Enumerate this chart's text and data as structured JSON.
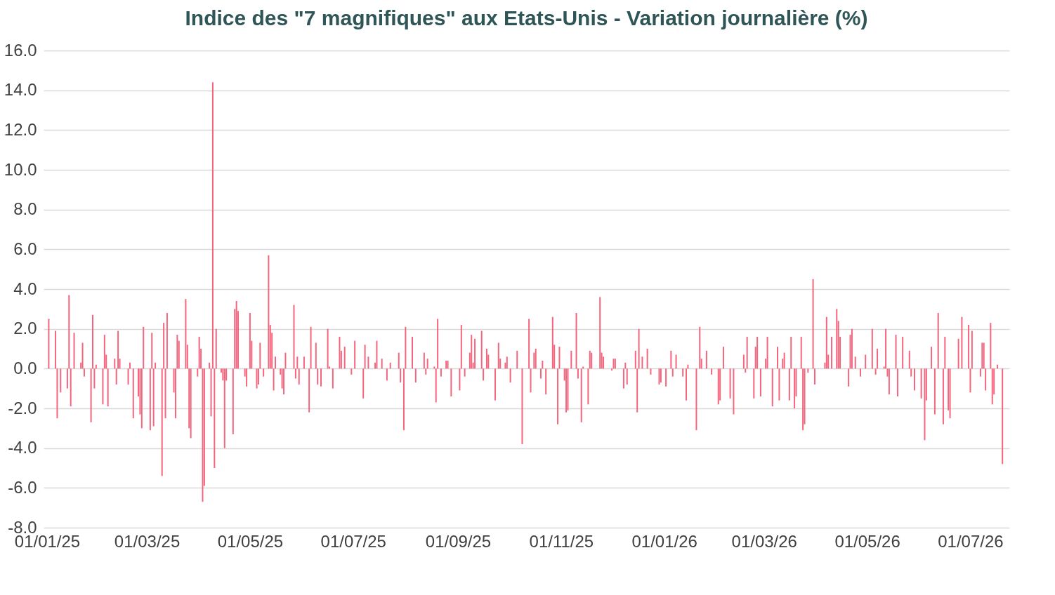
{
  "chart_data": {
    "type": "bar",
    "title": "Indice des \"7 magnifiques\" aux Etats-Unis - Variation journalière (%)",
    "x": [
      "2025-01-02",
      "2025-01-06",
      "2025-01-07",
      "2025-01-09",
      "2025-01-13",
      "2025-01-14",
      "2025-01-15",
      "2025-01-17",
      "2025-01-21",
      "2025-01-22",
      "2025-01-23",
      "2025-01-27",
      "2025-01-28",
      "2025-01-29",
      "2025-01-30",
      "2025-02-03",
      "2025-02-04",
      "2025-02-05",
      "2025-02-06",
      "2025-02-10",
      "2025-02-11",
      "2025-02-12",
      "2025-02-13",
      "2025-02-18",
      "2025-02-19",
      "2025-02-21",
      "2025-02-24",
      "2025-02-25",
      "2025-02-26",
      "2025-02-27",
      "2025-03-03",
      "2025-03-04",
      "2025-03-05",
      "2025-03-06",
      "2025-03-10",
      "2025-03-11",
      "2025-03-12",
      "2025-03-13",
      "2025-03-17",
      "2025-03-18",
      "2025-03-19",
      "2025-03-20",
      "2025-03-24",
      "2025-03-25",
      "2025-03-26",
      "2025-03-27",
      "2025-03-31",
      "2025-04-01",
      "2025-04-02",
      "2025-04-03",
      "2025-04-04",
      "2025-04-07",
      "2025-04-08",
      "2025-04-09",
      "2025-04-10",
      "2025-04-11",
      "2025-04-14",
      "2025-04-15",
      "2025-04-16",
      "2025-04-17",
      "2025-04-21",
      "2025-04-22",
      "2025-04-23",
      "2025-04-24",
      "2025-04-28",
      "2025-04-29",
      "2025-05-01",
      "2025-05-02",
      "2025-05-05",
      "2025-05-06",
      "2025-05-07",
      "2025-05-09",
      "2025-05-12",
      "2025-05-13",
      "2025-05-14",
      "2025-05-15",
      "2025-05-16",
      "2025-05-19",
      "2025-05-20",
      "2025-05-21",
      "2025-05-22",
      "2025-05-27",
      "2025-05-28",
      "2025-05-29",
      "2025-05-30",
      "2025-06-02",
      "2025-06-05",
      "2025-06-06",
      "2025-06-09",
      "2025-06-10",
      "2025-06-12",
      "2025-06-16",
      "2025-06-17",
      "2025-06-19",
      "2025-06-23",
      "2025-06-24",
      "2025-06-26",
      "2025-06-30",
      "2025-07-02",
      "2025-07-07",
      "2025-07-08",
      "2025-07-10",
      "2025-07-14",
      "2025-07-15",
      "2025-07-18",
      "2025-07-21",
      "2025-07-23",
      "2025-07-28",
      "2025-07-29",
      "2025-07-31",
      "2025-08-01",
      "2025-08-05",
      "2025-08-07",
      "2025-08-12",
      "2025-08-13",
      "2025-08-14",
      "2025-08-18",
      "2025-08-19",
      "2025-08-20",
      "2025-08-22",
      "2025-08-25",
      "2025-08-26",
      "2025-08-28",
      "2025-09-02",
      "2025-09-03",
      "2025-09-05",
      "2025-09-08",
      "2025-09-09",
      "2025-09-10",
      "2025-09-11",
      "2025-09-15",
      "2025-09-16",
      "2025-09-18",
      "2025-09-19",
      "2025-09-23",
      "2025-09-25",
      "2025-09-26",
      "2025-09-29",
      "2025-09-30",
      "2025-10-02",
      "2025-10-06",
      "2025-10-09",
      "2025-10-13",
      "2025-10-14",
      "2025-10-16",
      "2025-10-17",
      "2025-10-20",
      "2025-10-21",
      "2025-10-23",
      "2025-10-27",
      "2025-10-28",
      "2025-10-30",
      "2025-10-31",
      "2025-11-03",
      "2025-11-04",
      "2025-11-05",
      "2025-11-07",
      "2025-11-10",
      "2025-11-11",
      "2025-11-13",
      "2025-11-14",
      "2025-11-17",
      "2025-11-18",
      "2025-11-19",
      "2025-11-24",
      "2025-11-25",
      "2025-11-26",
      "2025-12-01",
      "2025-12-02",
      "2025-12-03",
      "2025-12-08",
      "2025-12-09",
      "2025-12-10",
      "2025-12-15",
      "2025-12-16",
      "2025-12-17",
      "2025-12-19",
      "2025-12-22",
      "2025-12-24",
      "2025-12-29",
      "2025-12-30",
      "2026-01-02",
      "2026-01-05",
      "2026-01-06",
      "2026-01-08",
      "2026-01-12",
      "2026-01-14",
      "2026-01-15",
      "2026-01-20",
      "2026-01-22",
      "2026-01-23",
      "2026-01-26",
      "2026-01-29",
      "2026-02-02",
      "2026-02-03",
      "2026-02-05",
      "2026-02-09",
      "2026-02-11",
      "2026-02-17",
      "2026-02-18",
      "2026-02-19",
      "2026-02-23",
      "2026-02-24",
      "2026-02-25",
      "2026-02-27",
      "2026-03-02",
      "2026-03-03",
      "2026-03-06",
      "2026-03-09",
      "2026-03-10",
      "2026-03-12",
      "2026-03-13",
      "2026-03-16",
      "2026-03-17",
      "2026-03-19",
      "2026-03-20",
      "2026-03-23",
      "2026-03-24",
      "2026-03-25",
      "2026-03-27",
      "2026-03-30",
      "2026-03-31",
      "2026-04-06",
      "2026-04-07",
      "2026-04-08",
      "2026-04-10",
      "2026-04-13",
      "2026-04-14",
      "2026-04-15",
      "2026-04-20",
      "2026-04-21",
      "2026-04-22",
      "2026-04-24",
      "2026-04-27",
      "2026-04-30",
      "2026-05-04",
      "2026-05-06",
      "2026-05-07",
      "2026-05-11",
      "2026-05-12",
      "2026-05-13",
      "2026-05-14",
      "2026-05-18",
      "2026-05-19",
      "2026-05-22",
      "2026-05-26",
      "2026-05-27",
      "2026-05-29",
      "2026-06-02",
      "2026-06-04",
      "2026-06-05",
      "2026-06-08",
      "2026-06-10",
      "2026-06-12",
      "2026-06-15",
      "2026-06-16",
      "2026-06-18",
      "2026-06-19",
      "2026-06-24",
      "2026-06-26",
      "2026-06-30",
      "2026-07-01",
      "2026-07-02",
      "2026-07-07",
      "2026-07-08",
      "2026-07-09",
      "2026-07-10",
      "2026-07-13",
      "2026-07-14",
      "2026-07-15",
      "2026-07-17",
      "2026-07-20"
    ],
    "values": [
      2.5,
      1.9,
      -2.5,
      -1.2,
      -1.0,
      3.7,
      -1.9,
      1.8,
      0.3,
      1.3,
      -0.4,
      -2.7,
      2.7,
      -1.0,
      0.2,
      -1.8,
      1.7,
      0.7,
      -1.9,
      0.5,
      -0.8,
      1.9,
      0.5,
      -0.8,
      0.3,
      -2.5,
      -1.4,
      -2.3,
      -3.0,
      2.1,
      -3.1,
      1.8,
      -2.9,
      0.3,
      -5.4,
      2.3,
      -2.5,
      2.8,
      -1.2,
      -2.5,
      1.7,
      1.4,
      3.5,
      1.2,
      -3.0,
      -3.5,
      -0.4,
      1.6,
      1.0,
      -6.7,
      -5.9,
      0.3,
      -2.4,
      14.4,
      -5.0,
      2.0,
      -0.2,
      -0.6,
      -4.0,
      -0.6,
      -3.3,
      3.0,
      3.4,
      2.9,
      -0.4,
      -0.9,
      2.8,
      1.4,
      -1.0,
      -0.8,
      1.3,
      -0.4,
      5.7,
      2.2,
      1.8,
      -1.1,
      0.6,
      -0.3,
      -1.0,
      -1.3,
      0.8,
      3.2,
      -0.5,
      0.6,
      -0.8,
      0.6,
      -2.2,
      2.1,
      1.3,
      -0.8,
      -0.9,
      2.0,
      0.1,
      -1.0,
      1.6,
      0.9,
      1.1,
      -0.3,
      1.4,
      -1.5,
      1.2,
      0.6,
      0.3,
      1.4,
      0.5,
      -0.6,
      0.3,
      0.8,
      -0.7,
      -3.1,
      2.1,
      1.6,
      -0.7,
      0.8,
      -0.3,
      0.5,
      0.1,
      -1.7,
      2.5,
      -0.4,
      0.4,
      0.4,
      -1.4,
      -1.1,
      2.2,
      -0.4,
      0.8,
      1.7,
      0.3,
      1.5,
      1.9,
      -0.6,
      1.0,
      0.7,
      -1.6,
      1.3,
      0.5,
      0.3,
      0.6,
      -0.7,
      0.9,
      -3.8,
      2.5,
      -1.2,
      0.8,
      1.0,
      -0.5,
      0.4,
      -1.3,
      2.6,
      1.2,
      -2.8,
      1.1,
      -0.6,
      -2.2,
      -2.1,
      0.9,
      2.8,
      -0.5,
      -2.7,
      0.1,
      -1.8,
      0.9,
      0.8,
      3.6,
      0.8,
      0.6,
      -0.1,
      0.5,
      0.5,
      -1.0,
      0.3,
      -0.8,
      0.9,
      -2.2,
      2.0,
      0.6,
      1.0,
      -0.3,
      -0.8,
      -0.7,
      -0.9,
      0.9,
      -0.4,
      0.7,
      -0.4,
      -1.6,
      0.2,
      -3.1,
      2.1,
      0.5,
      0.9,
      -0.3,
      -1.8,
      -1.6,
      1.1,
      -1.5,
      -2.3,
      0.7,
      -0.2,
      1.6,
      -1.5,
      1.1,
      1.6,
      -1.4,
      0.5,
      1.6,
      -1.9,
      1.1,
      -1.6,
      0.5,
      0.8,
      -1.6,
      1.6,
      -2.0,
      -1.4,
      1.6,
      -3.1,
      -2.8,
      -0.2,
      4.5,
      -0.8,
      0.3,
      2.6,
      0.7,
      1.6,
      3.0,
      2.4,
      1.6,
      -0.9,
      1.7,
      2.0,
      0.6,
      -0.4,
      0.7,
      2.0,
      -0.3,
      1.0,
      0.1,
      2.0,
      -0.4,
      -1.3,
      1.7,
      -1.4,
      1.6,
      0.9,
      -0.4,
      -1.1,
      -1.5,
      -3.6,
      -1.6,
      1.1,
      -2.3,
      2.8,
      -2.8,
      1.6,
      -2.1,
      -2.5,
      1.5,
      2.6,
      2.2,
      -1.2,
      1.9,
      -0.4,
      1.3,
      1.3,
      -1.1,
      2.3,
      -1.8,
      -1.3,
      0.2,
      -4.8
    ],
    "color": "#f4667e",
    "xlim": [
      "2025-01-01",
      "2026-07-22"
    ],
    "xticks": [
      {
        "value": "2025-01-01",
        "label": "01/01/25"
      },
      {
        "value": "2025-03-01",
        "label": "01/03/25"
      },
      {
        "value": "2025-05-01",
        "label": "01/05/25"
      },
      {
        "value": "2025-07-01",
        "label": "01/07/25"
      },
      {
        "value": "2025-09-01",
        "label": "01/09/25"
      },
      {
        "value": "2025-11-01",
        "label": "01/11/25"
      },
      {
        "value": "2026-01-01",
        "label": "01/01/26"
      },
      {
        "value": "2026-03-01",
        "label": "01/03/26"
      },
      {
        "value": "2026-05-01",
        "label": "01/05/26"
      },
      {
        "value": "2026-07-01",
        "label": "01/07/26"
      }
    ],
    "ylim": [
      -8,
      16
    ],
    "yticks": [
      {
        "value": -8,
        "label": "-8.0"
      },
      {
        "value": -6,
        "label": "-6.0"
      },
      {
        "value": -4,
        "label": "-4.0"
      },
      {
        "value": -2,
        "label": "-2.0"
      },
      {
        "value": 0,
        "label": "0.0"
      },
      {
        "value": 2,
        "label": "2.0"
      },
      {
        "value": 4,
        "label": "4.0"
      },
      {
        "value": 6,
        "label": "6.0"
      },
      {
        "value": 8,
        "label": "8.0"
      },
      {
        "value": 10,
        "label": "10.0"
      },
      {
        "value": 12,
        "label": "12.0"
      },
      {
        "value": 14,
        "label": "14.0"
      },
      {
        "value": 16,
        "label": "16.0"
      }
    ],
    "grid": "y"
  }
}
